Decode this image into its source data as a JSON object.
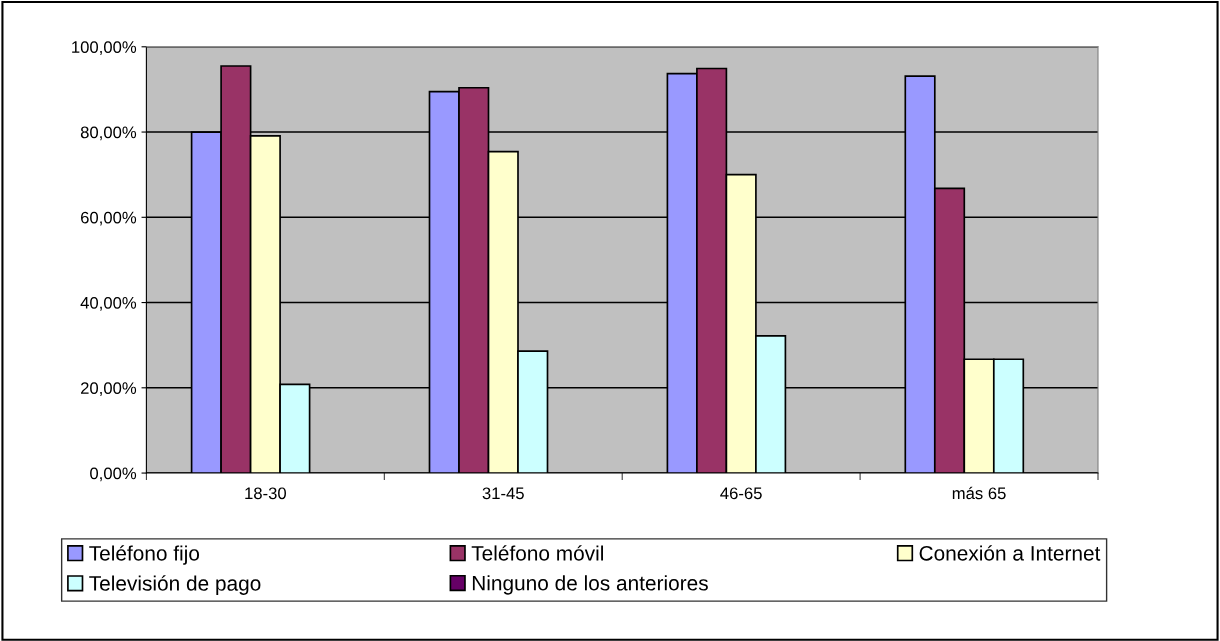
{
  "chart_data": {
    "type": "bar",
    "categories": [
      "18-30",
      "31-45",
      "46-65",
      "más 65"
    ],
    "series": [
      {
        "name": "Teléfono fijo",
        "color": "#9999ff",
        "values": [
          80,
          89.5,
          93.7,
          93.1
        ]
      },
      {
        "name": "Teléfono móvil",
        "color": "#993366",
        "values": [
          95.5,
          90.4,
          94.9,
          66.8
        ]
      },
      {
        "name": "Conexión a Internet",
        "color": "#ffffcc",
        "values": [
          79.1,
          75.4,
          70.0,
          26.7
        ]
      },
      {
        "name": "Televisión de pago",
        "color": "#ccffff",
        "values": [
          20.8,
          28.6,
          32.2,
          26.7
        ]
      },
      {
        "name": "Ninguno de los anteriores",
        "color": "#660066",
        "values": [
          null,
          null,
          null,
          null
        ]
      }
    ],
    "ylim": [
      0,
      100
    ],
    "yticks": [
      {
        "value": 0,
        "label": "0,00%"
      },
      {
        "value": 20,
        "label": "20,00%"
      },
      {
        "value": 40,
        "label": "40,00%"
      },
      {
        "value": 60,
        "label": "60,00%"
      },
      {
        "value": 80,
        "label": "80,00%"
      },
      {
        "value": 100,
        "label": "100,00%"
      }
    ],
    "grid": "y",
    "legend": "bottom"
  }
}
